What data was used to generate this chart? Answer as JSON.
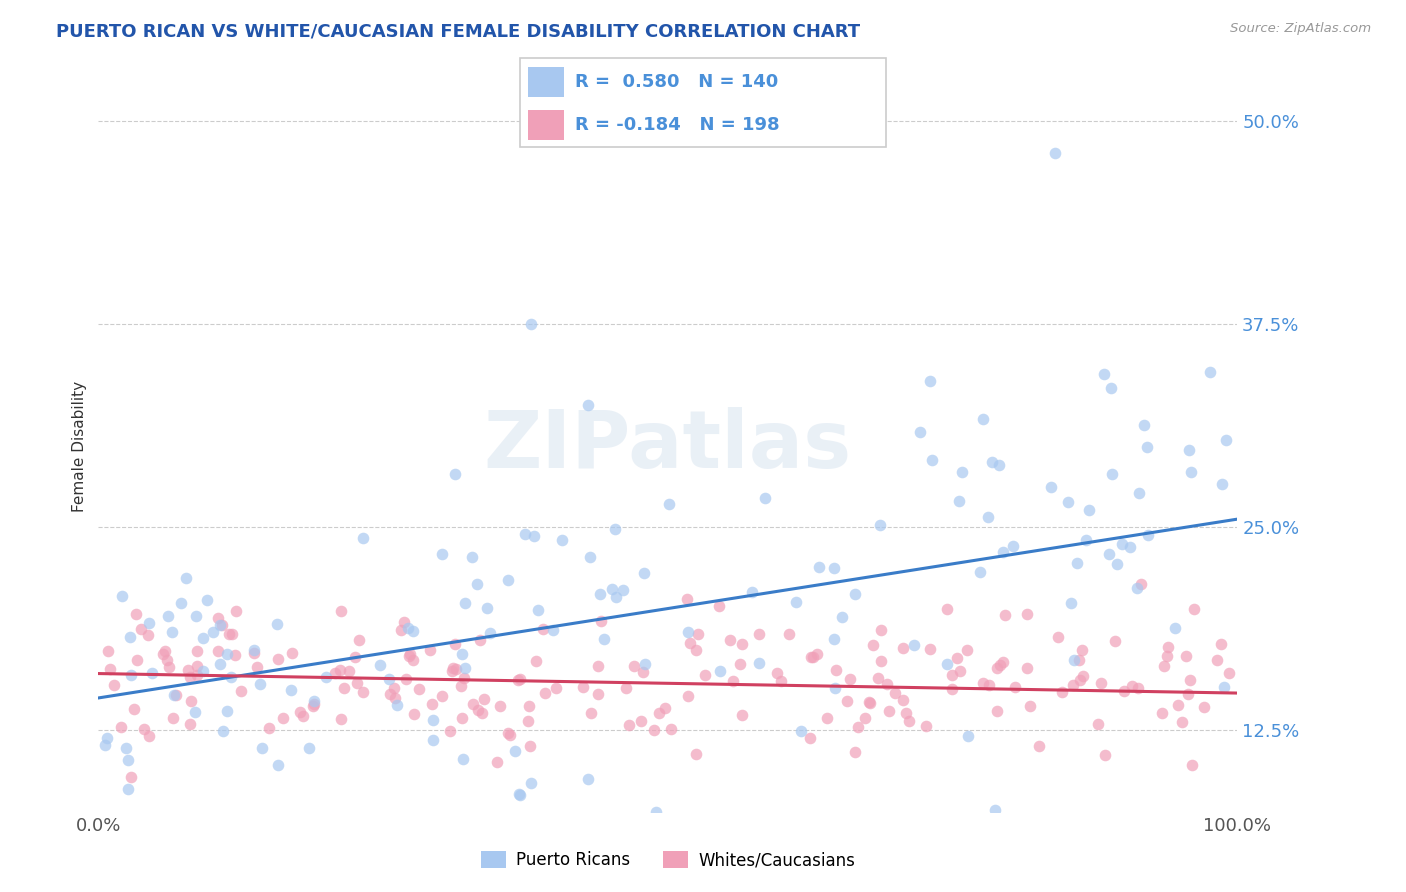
{
  "title": "PUERTO RICAN VS WHITE/CAUCASIAN FEMALE DISABILITY CORRELATION CHART",
  "source": "Source: ZipAtlas.com",
  "ylabel": "Female Disability",
  "xlim": [
    0.0,
    1.0
  ],
  "ylim": [
    0.075,
    0.525
  ],
  "yticks": [
    0.125,
    0.25,
    0.375,
    0.5
  ],
  "ytick_labels": [
    "12.5%",
    "25.0%",
    "37.5%",
    "50.0%"
  ],
  "xticks": [
    0.0,
    1.0
  ],
  "xtick_labels": [
    "0.0%",
    "100.0%"
  ],
  "pr_R": 0.58,
  "pr_N": 140,
  "wc_R": -0.184,
  "wc_N": 198,
  "pr_color": "#A8C8F0",
  "wc_color": "#F0A0B8",
  "pr_line_color": "#3A7CC8",
  "wc_line_color": "#D04060",
  "title_color": "#2255AA",
  "background_color": "#FFFFFF",
  "grid_color": "#CCCCCC",
  "watermark": "ZIPatlas",
  "pr_line_y0": 0.145,
  "pr_line_y1": 0.255,
  "wc_line_y0": 0.16,
  "wc_line_y1": 0.148
}
